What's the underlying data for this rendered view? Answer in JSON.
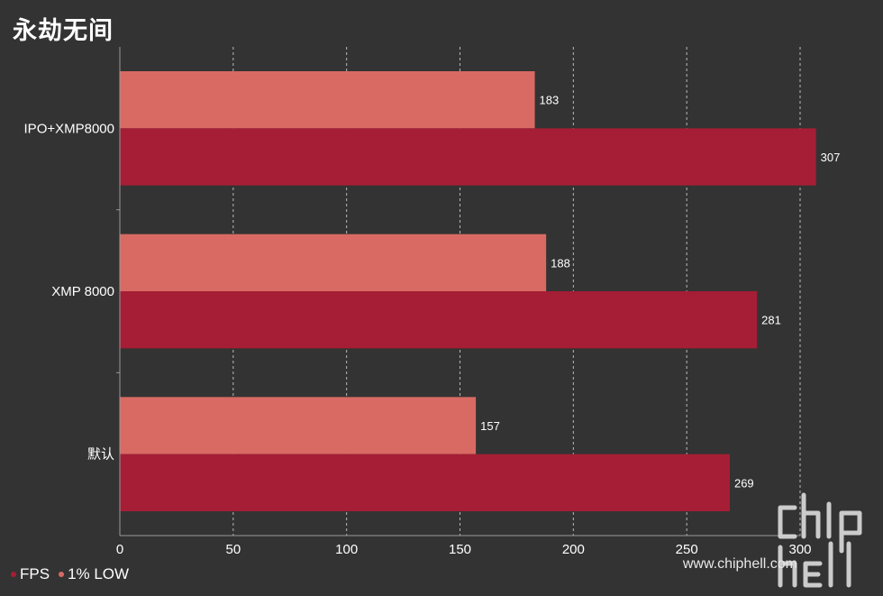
{
  "chart_data": {
    "type": "bar",
    "orientation": "horizontal",
    "title": "永劫无间",
    "categories": [
      "IPO+XMP8000",
      "XMP 8000",
      "默认"
    ],
    "series": [
      {
        "name": "1% LOW",
        "values": [
          183,
          188,
          157
        ],
        "color": "#d96a63"
      },
      {
        "name": "FPS",
        "values": [
          307,
          281,
          269
        ],
        "color": "#a51e35"
      }
    ],
    "xlim": [
      0,
      300
    ],
    "xticks": [
      "0",
      "50",
      "100",
      "150",
      "200",
      "250",
      "300"
    ],
    "grid": "vertical-dashed",
    "legend_position": "bottom-left"
  },
  "legend": [
    {
      "label": "FPS",
      "color": "#a51e35"
    },
    {
      "label": "1% LOW",
      "color": "#d96a63"
    }
  ],
  "watermark": {
    "text": "www.chiphell.com"
  }
}
